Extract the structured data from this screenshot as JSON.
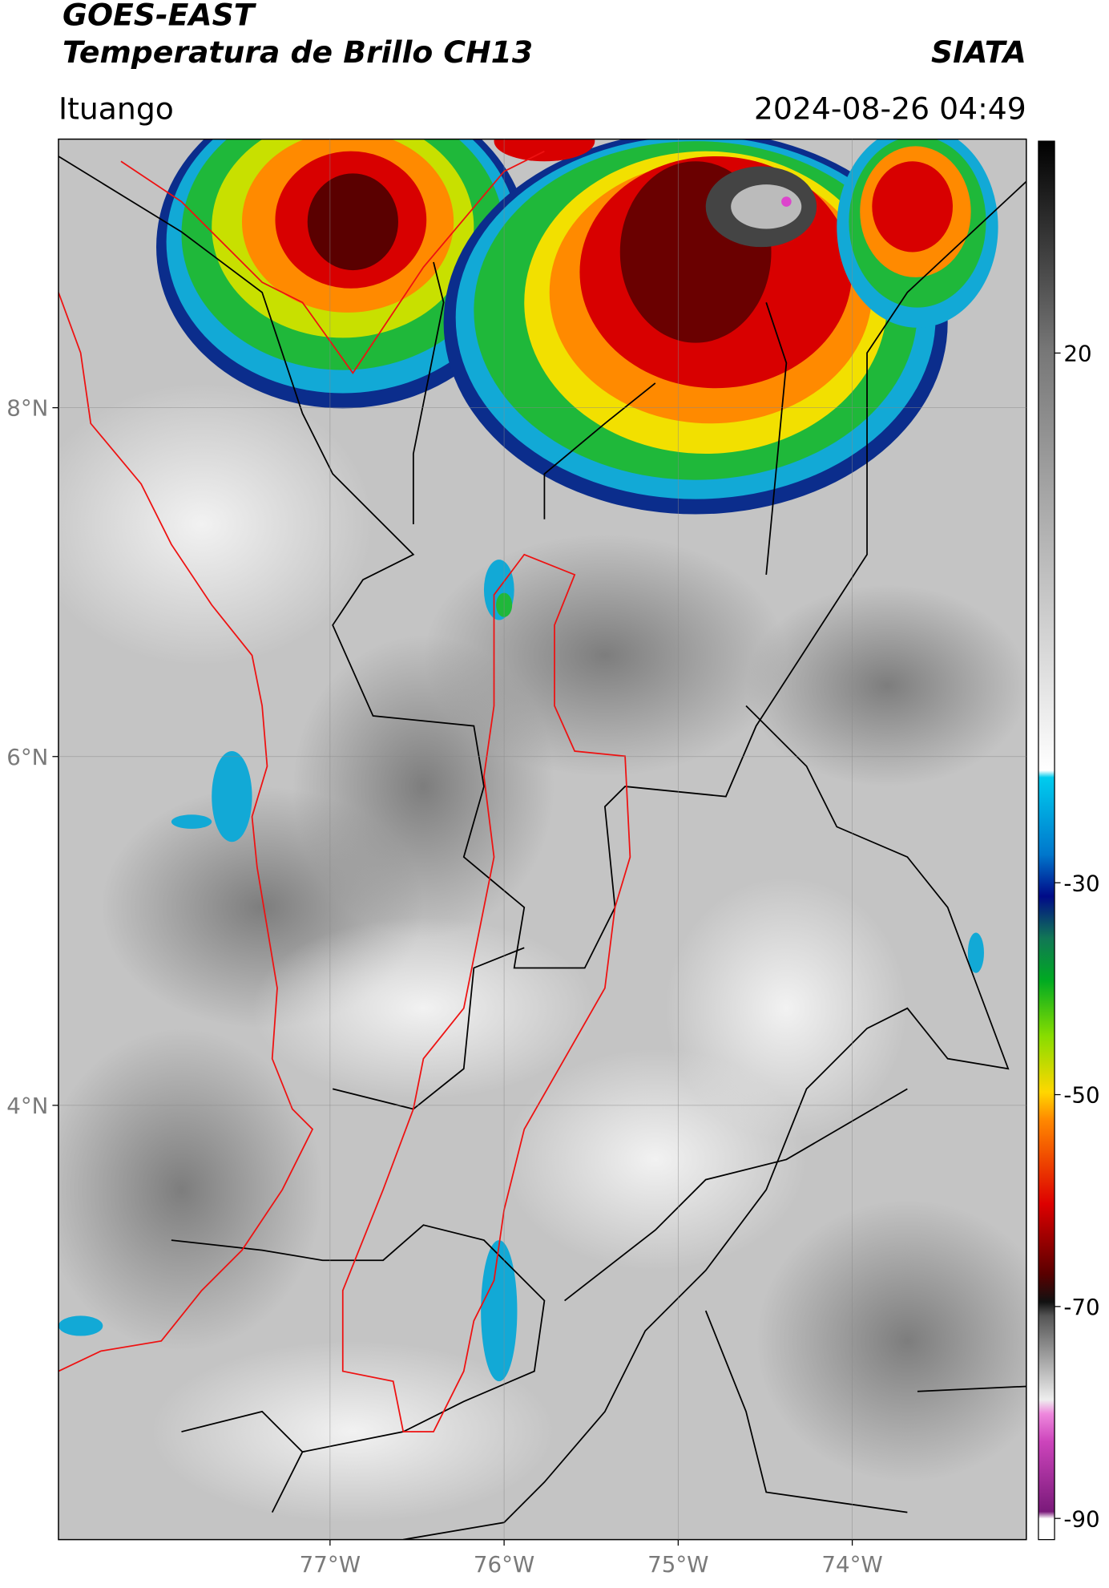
{
  "header": {
    "satellite": "GOES-EAST",
    "product": "Temperatura de Brillo CH13",
    "agency": "SIATA",
    "region": "Ituango",
    "datetime": "2024-08-26 04:49"
  },
  "map": {
    "xlim": [
      -78.56,
      -73.0
    ],
    "ylim": [
      1.51,
      9.54
    ],
    "xticks": [
      {
        "value": -77,
        "label": "77°W"
      },
      {
        "value": -76,
        "label": "76°W"
      },
      {
        "value": -75,
        "label": "75°W"
      },
      {
        "value": -74,
        "label": "74°W"
      }
    ],
    "yticks": [
      {
        "value": 8,
        "label": "8°N"
      },
      {
        "value": 6,
        "label": "6°N"
      },
      {
        "value": 4,
        "label": "4°N"
      }
    ],
    "grid": true
  },
  "colorbar": {
    "lim": [
      -92,
      40
    ],
    "ticks": [
      20,
      -30,
      -50,
      -70,
      -90
    ]
  }
}
